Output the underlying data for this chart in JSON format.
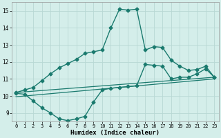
{
  "series": [
    {
      "name": "top_curve",
      "x": [
        0,
        1,
        2,
        3,
        4,
        5,
        6,
        7,
        8,
        9,
        10,
        11,
        12,
        13,
        14,
        15,
        16,
        17,
        18,
        19,
        20,
        21,
        22,
        23
      ],
      "y": [
        10.2,
        10.35,
        10.5,
        10.9,
        11.3,
        11.65,
        11.9,
        12.15,
        12.5,
        12.6,
        12.7,
        14.0,
        15.1,
        15.05,
        15.1,
        12.7,
        12.9,
        12.85,
        12.1,
        11.75,
        11.5,
        11.55,
        11.75,
        11.1
      ],
      "color": "#1a7a6e",
      "marker": "D",
      "markersize": 2.5,
      "linewidth": 1.0
    },
    {
      "name": "upper_straight",
      "x": [
        0,
        23
      ],
      "y": [
        10.2,
        11.1
      ],
      "color": "#1a7a6e",
      "marker": null,
      "linewidth": 0.9
    },
    {
      "name": "lower_straight",
      "x": [
        0,
        23
      ],
      "y": [
        9.95,
        11.0
      ],
      "color": "#1a7a6e",
      "marker": null,
      "linewidth": 0.9
    },
    {
      "name": "bottom_curve",
      "x": [
        0,
        1,
        2,
        3,
        4,
        5,
        6,
        7,
        8,
        9,
        10,
        11,
        12,
        13,
        14,
        15,
        16,
        17,
        18,
        19,
        20,
        21,
        22,
        23
      ],
      "y": [
        10.15,
        10.1,
        9.7,
        9.3,
        9.0,
        8.65,
        8.55,
        8.65,
        8.8,
        9.65,
        10.35,
        10.45,
        10.5,
        10.55,
        10.6,
        11.85,
        11.8,
        11.75,
        11.0,
        11.1,
        11.1,
        11.3,
        11.6,
        11.1
      ],
      "color": "#1a7a6e",
      "marker": "D",
      "markersize": 2.5,
      "linewidth": 1.0
    }
  ],
  "xlim": [
    -0.5,
    23.5
  ],
  "ylim": [
    8.5,
    15.5
  ],
  "xticks": [
    0,
    1,
    2,
    3,
    4,
    5,
    6,
    7,
    8,
    9,
    10,
    11,
    12,
    13,
    14,
    15,
    16,
    17,
    18,
    19,
    20,
    21,
    22,
    23
  ],
  "yticks": [
    9,
    10,
    11,
    12,
    13,
    14,
    15
  ],
  "xlabel": "Humidex (Indice chaleur)",
  "bg_color": "#d4eeea",
  "grid_color": "#b8d8d4",
  "line_color": "#1a7a6e"
}
